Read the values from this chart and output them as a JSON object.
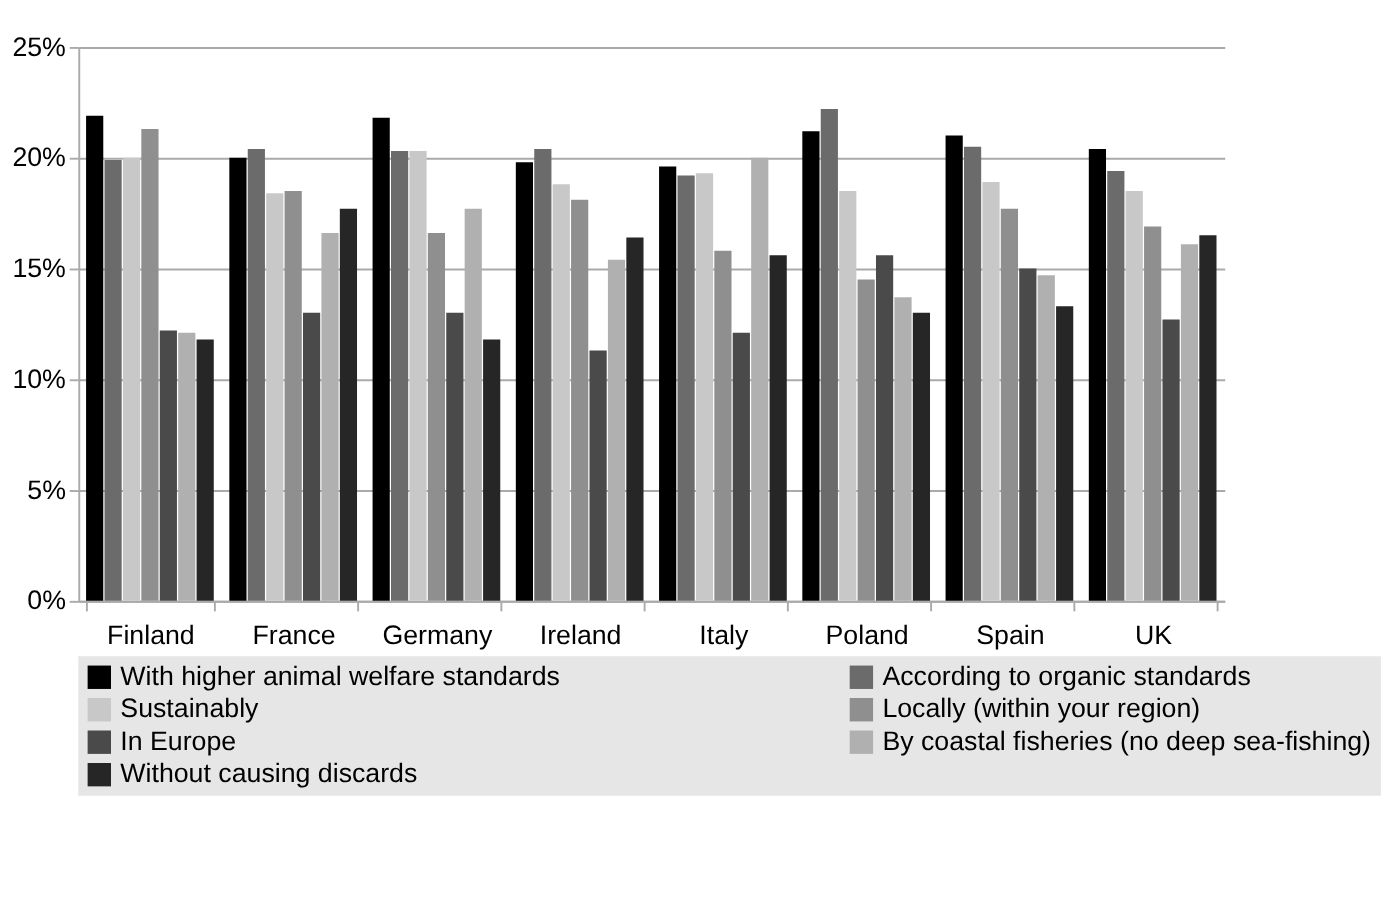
{
  "chart_data": {
    "type": "bar",
    "categories": [
      "Finland",
      "France",
      "Germany",
      "Ireland",
      "Italy",
      "Poland",
      "Spain",
      "UK"
    ],
    "series": [
      {
        "name": "With higher animal welfare standards",
        "color": "#000000",
        "values": [
          21.9,
          20.0,
          21.8,
          19.8,
          19.6,
          21.2,
          21.0,
          20.4
        ]
      },
      {
        "name": "According to organic standards",
        "color": "#6b6b6b",
        "values": [
          19.9,
          20.4,
          20.3,
          20.4,
          19.2,
          22.2,
          20.5,
          19.4
        ]
      },
      {
        "name": "Sustainably",
        "color": "#c8c8c8",
        "values": [
          20.0,
          18.4,
          20.3,
          18.8,
          19.3,
          18.5,
          18.9,
          18.5
        ]
      },
      {
        "name": "Locally (within your region)",
        "color": "#8f8f8f",
        "values": [
          21.3,
          18.5,
          16.6,
          18.1,
          15.8,
          14.5,
          17.7,
          16.9
        ]
      },
      {
        "name": "In Europe",
        "color": "#4a4a4a",
        "values": [
          12.2,
          13.0,
          13.0,
          11.3,
          12.1,
          15.6,
          15.0,
          12.7
        ]
      },
      {
        "name": "By coastal fisheries (no deep sea-fishing)",
        "color": "#b0b0b0",
        "values": [
          12.1,
          16.6,
          17.7,
          15.4,
          20.0,
          13.7,
          14.7,
          16.1
        ]
      },
      {
        "name": "Without causing discards",
        "color": "#262626",
        "values": [
          11.8,
          17.7,
          11.8,
          16.4,
          15.6,
          13.0,
          13.3,
          16.5
        ]
      }
    ],
    "ylim": [
      0,
      25
    ],
    "yticks": [
      {
        "value": 0,
        "label": "0%"
      },
      {
        "value": 5,
        "label": "5%"
      },
      {
        "value": 10,
        "label": "10%"
      },
      {
        "value": 15,
        "label": "15%"
      },
      {
        "value": 20,
        "label": "20%"
      },
      {
        "value": 25,
        "label": "25%"
      }
    ],
    "grid": "y",
    "legend": "bottom"
  }
}
